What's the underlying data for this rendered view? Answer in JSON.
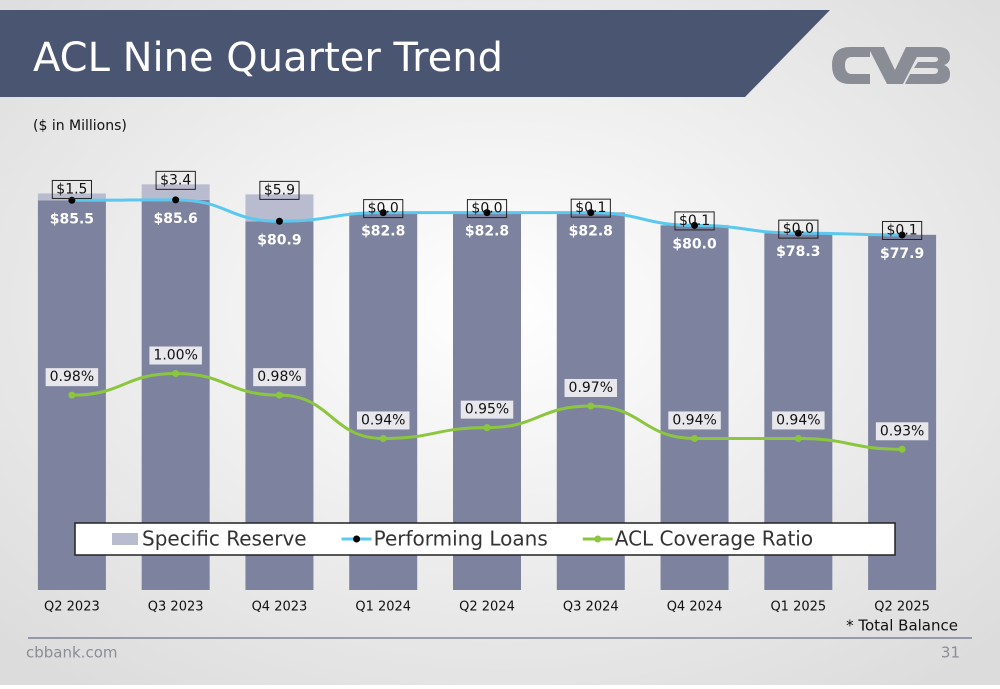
{
  "header": {
    "title": "ACL Nine Quarter Trend",
    "subtitle": "($ in Millions)"
  },
  "chart_data": {
    "type": "combo",
    "categories": [
      "Q2 2023",
      "Q3 2023",
      "Q4 2023",
      "Q1 2024",
      "Q2 2024",
      "Q3 2024",
      "Q4 2024",
      "Q1 2025",
      "Q2 2025"
    ],
    "ylim": [
      0,
      95
    ],
    "y2lim": [
      0.8,
      1.2
    ],
    "series": [
      {
        "name": "Specific Reserve",
        "type": "bar",
        "color": "#b9bccf",
        "values": [
          1.5,
          3.4,
          5.9,
          0.0,
          0.0,
          0.1,
          0.1,
          0.0,
          0.1
        ],
        "value_labels": [
          "$1.5",
          "$3.4",
          "$5.9",
          "$0.0",
          "$0.0",
          "$0.1",
          "$0.1",
          "$0.0",
          "$0.1"
        ]
      },
      {
        "name": "Performing Loans",
        "type": "line",
        "color": "#5bc8f0",
        "bar_color": "#7d829f",
        "values": [
          85.5,
          85.6,
          80.9,
          82.8,
          82.8,
          82.8,
          80.0,
          78.3,
          77.9
        ],
        "value_labels": [
          "$85.5",
          "$85.6",
          "$80.9",
          "$82.8",
          "$82.8",
          "$82.8",
          "$80.0",
          "$78.3",
          "$77.9"
        ]
      },
      {
        "name": "ACL Coverage Ratio",
        "type": "line",
        "axis": "y2",
        "color": "#8cc63f",
        "values": [
          0.98,
          1.0,
          0.98,
          0.94,
          0.95,
          0.97,
          0.94,
          0.94,
          0.93
        ],
        "value_labels": [
          "0.98%",
          "1.00%",
          "0.98%",
          "0.94%",
          "0.95%",
          "0.97%",
          "0.94%",
          "0.94%",
          "0.93%"
        ]
      }
    ]
  },
  "footer": {
    "note": "* Total Balance",
    "site": "cbbank.com",
    "page": "31"
  }
}
